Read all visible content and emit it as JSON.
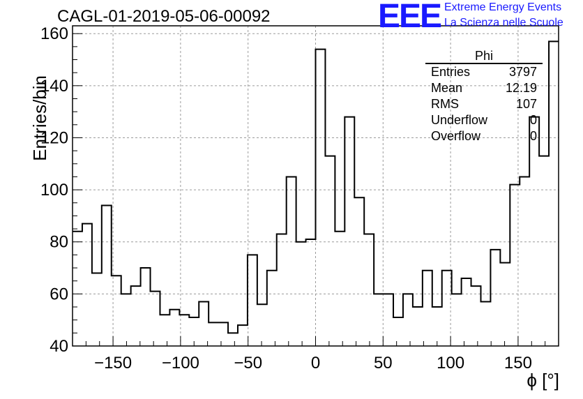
{
  "title": "CAGL-01-2019-05-06-00092",
  "logo": {
    "mark": "EEE",
    "line1": "Extreme Energy Events",
    "line2": "La Scienza nelle Scuole",
    "color": "#1a1aff"
  },
  "stats": {
    "name": "Phi",
    "rows": [
      {
        "key": "Entries",
        "value": "3797"
      },
      {
        "key": "Mean",
        "value": "12.19"
      },
      {
        "key": "RMS",
        "value": "107"
      },
      {
        "key": "Underflow",
        "value": "0"
      },
      {
        "key": "Overflow",
        "value": "0"
      }
    ]
  },
  "chart_data": {
    "type": "histogram",
    "title": "CAGL-01-2019-05-06-00092",
    "xlabel": "ϕ [°]",
    "ylabel": "Entries/bin",
    "xlim": [
      -180,
      180
    ],
    "ylim": [
      40,
      163
    ],
    "bin_width": 7.2,
    "x_ticks": [
      -150,
      -100,
      -50,
      0,
      50,
      100,
      150
    ],
    "y_ticks": [
      40,
      60,
      80,
      100,
      120,
      140,
      160
    ],
    "grid": true,
    "line_color": "#000000",
    "values": [
      84,
      87,
      68,
      94,
      67,
      60,
      63,
      70,
      61,
      52,
      54,
      52,
      51,
      57,
      49,
      49,
      45,
      48,
      75,
      56,
      69,
      83,
      105,
      80,
      81,
      154,
      113,
      84,
      128,
      97,
      83,
      60,
      60,
      51,
      60,
      55,
      69,
      55,
      69,
      60,
      66,
      63,
      57,
      77,
      72,
      102,
      105,
      128,
      113,
      157
    ]
  }
}
